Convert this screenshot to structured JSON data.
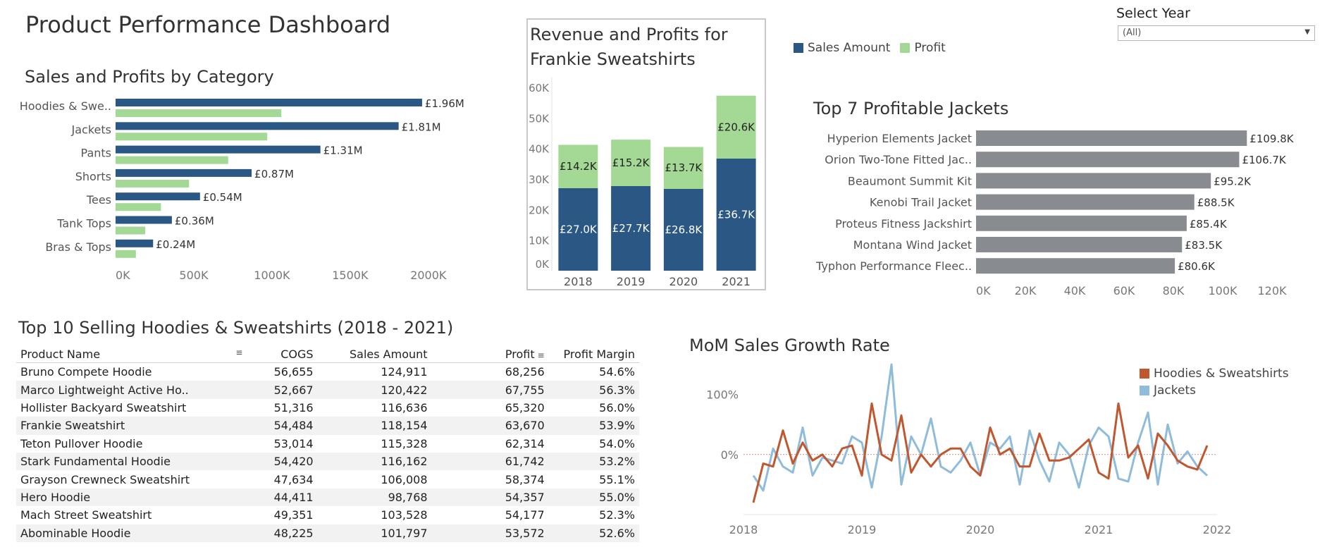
{
  "dashboard": {
    "title": "Product Performance Dashboard"
  },
  "filter": {
    "label": "Select Year",
    "value": "(All)"
  },
  "legend": {
    "items": [
      {
        "label": "Sales Amount",
        "color": "#2a5783"
      },
      {
        "label": "Profit",
        "color": "#a3d995"
      }
    ]
  },
  "chart_data": [
    {
      "id": "category",
      "type": "bar",
      "orientation": "horizontal",
      "title": "Sales and Profits by Category",
      "categories": [
        "Hoodies & Swe..",
        "Jackets",
        "Pants",
        "Shorts",
        "Tees",
        "Tank Tops",
        "Bras & Tops"
      ],
      "series": [
        {
          "name": "Sales Amount",
          "color": "#2a5783",
          "values": [
            1960000,
            1810000,
            1310000,
            870000,
            540000,
            360000,
            240000
          ],
          "labels": [
            "£1.96M",
            "£1.81M",
            "£1.31M",
            "£0.87M",
            "£0.54M",
            "£0.36M",
            "£0.24M"
          ]
        },
        {
          "name": "Profit",
          "color": "#a3d995",
          "values": [
            1060000,
            970000,
            720000,
            470000,
            290000,
            190000,
            130000
          ]
        }
      ],
      "xlim": [
        0,
        2100000
      ],
      "xticks": [
        0,
        500000,
        1000000,
        1500000,
        2000000
      ],
      "xtick_labels": [
        "0K",
        "500K",
        "1000K",
        "1500K",
        "2000K"
      ],
      "grid": false
    },
    {
      "id": "frankie",
      "type": "bar",
      "stacked": true,
      "title": "Revenue and Profits for Frankie Sweatshirts",
      "title_lines": [
        "Revenue and Profits for",
        "Frankie Sweatshirts"
      ],
      "categories": [
        "2018",
        "2019",
        "2020",
        "2021"
      ],
      "series": [
        {
          "name": "Sales Amount",
          "color": "#2a5783",
          "values": [
            27000,
            27700,
            26800,
            36700
          ],
          "labels": [
            "£27.0K",
            "£27.7K",
            "£26.8K",
            "£36.7K"
          ]
        },
        {
          "name": "Profit",
          "color": "#a3d995",
          "values": [
            14200,
            15200,
            13700,
            20600
          ],
          "labels": [
            "£14.2K",
            "£15.2K",
            "£13.7K",
            "£20.6K"
          ]
        }
      ],
      "ylim": [
        0,
        60000
      ],
      "yticks": [
        0,
        10000,
        20000,
        30000,
        40000,
        50000,
        60000
      ],
      "ytick_labels": [
        "0K",
        "10K",
        "20K",
        "30K",
        "40K",
        "50K",
        "60K"
      ],
      "grid": false
    },
    {
      "id": "jackets",
      "type": "bar",
      "orientation": "horizontal",
      "title": "Top 7 Profitable Jackets",
      "color": "#888c91",
      "categories": [
        "Hyperion Elements Jacket",
        "Orion Two-Tone Fitted Jac..",
        "Beaumont Summit Kit",
        "Kenobi Trail Jacket",
        "Proteus Fitness Jackshirt",
        "Montana Wind Jacket",
        "Typhon Performance Fleec.."
      ],
      "values": [
        109800,
        106700,
        95200,
        88500,
        85400,
        83500,
        80600
      ],
      "labels": [
        "£109.8K",
        "£106.7K",
        "£95.2K",
        "£88.5K",
        "£85.4K",
        "£83.5K",
        "£80.6K"
      ],
      "xlim": [
        0,
        130000
      ],
      "xticks": [
        0,
        20000,
        40000,
        60000,
        80000,
        100000,
        120000
      ],
      "xtick_labels": [
        "0K",
        "20K",
        "40K",
        "60K",
        "80K",
        "100K",
        "120K"
      ],
      "grid": false
    },
    {
      "id": "top10",
      "type": "table",
      "title": "Top 10 Selling Hoodies & Sweatshirts (2018 - 2021)",
      "columns": [
        "Product Name",
        "COGS",
        "Sales Amount",
        "Profit",
        "Profit Margin"
      ],
      "rows": [
        [
          "Bruno Compete Hoodie",
          "56,655",
          "124,911",
          "68,256",
          "54.6%"
        ],
        [
          "Marco Lightweight Active Ho..",
          "52,667",
          "120,422",
          "67,755",
          "56.3%"
        ],
        [
          "Hollister Backyard Sweatshirt",
          "51,316",
          "116,636",
          "65,320",
          "56.0%"
        ],
        [
          "Frankie  Sweatshirt",
          "54,484",
          "118,154",
          "63,670",
          "53.9%"
        ],
        [
          "Teton Pullover Hoodie",
          "53,014",
          "115,328",
          "62,314",
          "54.0%"
        ],
        [
          "Stark Fundamental Hoodie",
          "54,420",
          "116,162",
          "61,742",
          "53.2%"
        ],
        [
          "Grayson Crewneck Sweatshirt",
          "47,634",
          "106,008",
          "58,374",
          "55.1%"
        ],
        [
          "Hero Hoodie",
          "44,411",
          "98,768",
          "54,357",
          "55.0%"
        ],
        [
          "Mach Street Sweatshirt",
          "49,351",
          "103,528",
          "54,177",
          "52.3%"
        ],
        [
          "Abominable Hoodie",
          "48,225",
          "101,797",
          "53,572",
          "52.6%"
        ]
      ]
    },
    {
      "id": "mom",
      "type": "line",
      "title": "MoM Sales Growth Rate",
      "x_start_year": 2018,
      "xlim": [
        2018,
        2022
      ],
      "xticks": [
        2018,
        2019,
        2020,
        2021,
        2022
      ],
      "xtick_labels": [
        "2018",
        "2019",
        "2020",
        "2021",
        "2022"
      ],
      "ylim": [
        -100,
        150
      ],
      "yticks": [
        0,
        100
      ],
      "ytick_labels": [
        "0%",
        "100%"
      ],
      "reference_line": 0,
      "legend_position": "top-right",
      "series": [
        {
          "name": "Hoodies & Sweatshirts",
          "color": "#c0572f",
          "values": [
            -80,
            -15,
            -20,
            40,
            -15,
            20,
            -10,
            0,
            -20,
            10,
            15,
            -35,
            85,
            0,
            -10,
            65,
            -30,
            0,
            -20,
            0,
            10,
            10,
            -20,
            -35,
            45,
            0,
            10,
            -20,
            -20,
            35,
            -10,
            -10,
            -5,
            10,
            25,
            -30,
            -40,
            85,
            -5,
            15,
            -40,
            35,
            15,
            -10,
            -20,
            -25,
            15
          ]
        },
        {
          "name": "Jackets",
          "color": "#8fbcdb",
          "values": [
            -35,
            -60,
            10,
            -20,
            -30,
            45,
            -35,
            -5,
            -10,
            -15,
            30,
            20,
            -55,
            30,
            150,
            -50,
            30,
            0,
            60,
            -20,
            -30,
            -10,
            20,
            -35,
            20,
            10,
            30,
            -50,
            40,
            -10,
            -45,
            20,
            0,
            -55,
            15,
            45,
            30,
            -40,
            -45,
            20,
            70,
            -50,
            50,
            -15,
            5,
            -20,
            -35
          ]
        }
      ]
    }
  ]
}
